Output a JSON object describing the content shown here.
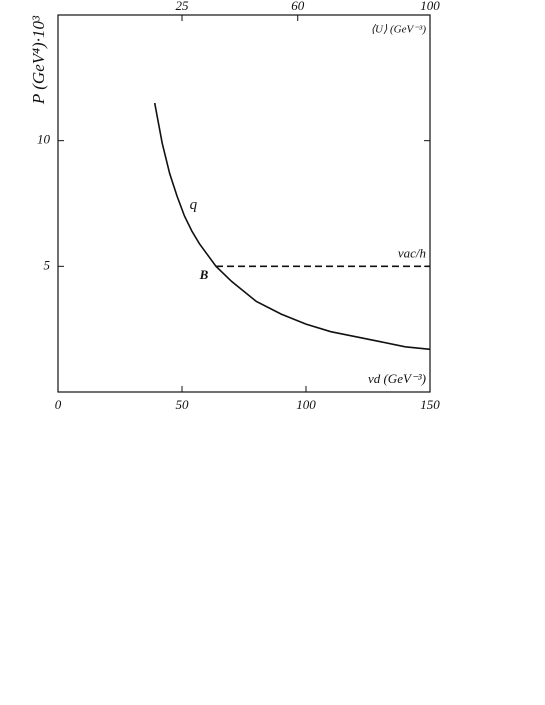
{
  "chart_data": {
    "type": "line",
    "ylabel": "P (GeV⁴)·10³",
    "xlabel": "vd (GeV⁻³)",
    "x2label": "⟨U⟩ (GeV⁻³)",
    "annotations": [
      "B"
    ],
    "xlim": [
      0,
      150
    ],
    "xticks": [
      0,
      50,
      100,
      150
    ],
    "x2lim": [
      -12.5,
      100
    ],
    "x2ticks": [
      25,
      60,
      100
    ],
    "ylim": [
      0,
      15
    ],
    "yticks": [
      5,
      10
    ],
    "series": [
      {
        "name": "q",
        "color": "#111111",
        "dashed": false,
        "x": [
          39,
          42,
          45,
          48,
          51,
          54,
          57,
          60,
          63.7,
          70,
          80,
          90,
          100,
          110,
          120,
          130,
          140,
          150
        ],
        "values": [
          11.5,
          9.9,
          8.7,
          7.8,
          7.0,
          6.4,
          5.9,
          5.5,
          5.0,
          4.4,
          3.6,
          3.1,
          2.7,
          2.4,
          2.2,
          2.0,
          1.8,
          1.7
        ]
      },
      {
        "name": "vac/h",
        "color": "#111111",
        "dashed": true,
        "x": [
          63.7,
          150
        ],
        "values": [
          5,
          5
        ]
      }
    ]
  }
}
